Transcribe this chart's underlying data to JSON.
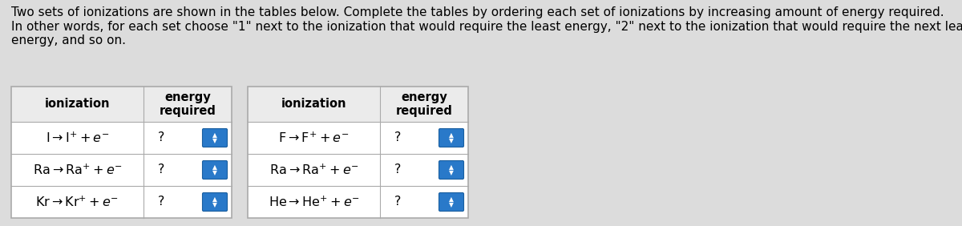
{
  "title_line1": "Two sets of ionizations are shown in the tables below. Complete the tables by ordering each set of ionizations by increasing amount of energy required.",
  "title_line2": "In other words, for each set choose \"1\" next to the ionization that would require the least energy, \"2\" next to the ionization that would require the next least\nenergy, and so on.",
  "bg_color": "#dcdcdc",
  "cell_bg": "#ffffff",
  "header_bg": "#ebebeb",
  "border_color": "#aaaaaa",
  "table1_rows": [
    "$\\mathrm{I} \\rightarrow \\mathrm{I}^{+} + e^{-}$",
    "$\\mathrm{Ra} \\rightarrow \\mathrm{Ra}^{+} + e^{-}$",
    "$\\mathrm{Kr} \\rightarrow \\mathrm{Kr}^{+} + e^{-}$"
  ],
  "table2_rows": [
    "$\\mathrm{F} \\rightarrow \\mathrm{F}^{+} + e^{-}$",
    "$\\mathrm{Ra} \\rightarrow \\mathrm{Ra}^{+} + e^{-}$",
    "$\\mathrm{He} \\rightarrow \\mathrm{He}^{+} + e^{-}$"
  ],
  "col_header1": "ionization",
  "col_header2": "energy\nrequired",
  "dropdown_color": "#2979c9",
  "dropdown_edge": "#1a5fa0",
  "text_color": "#000000",
  "font_size_title": 11.0,
  "font_size_cell": 11.5,
  "font_size_header": 10.5
}
